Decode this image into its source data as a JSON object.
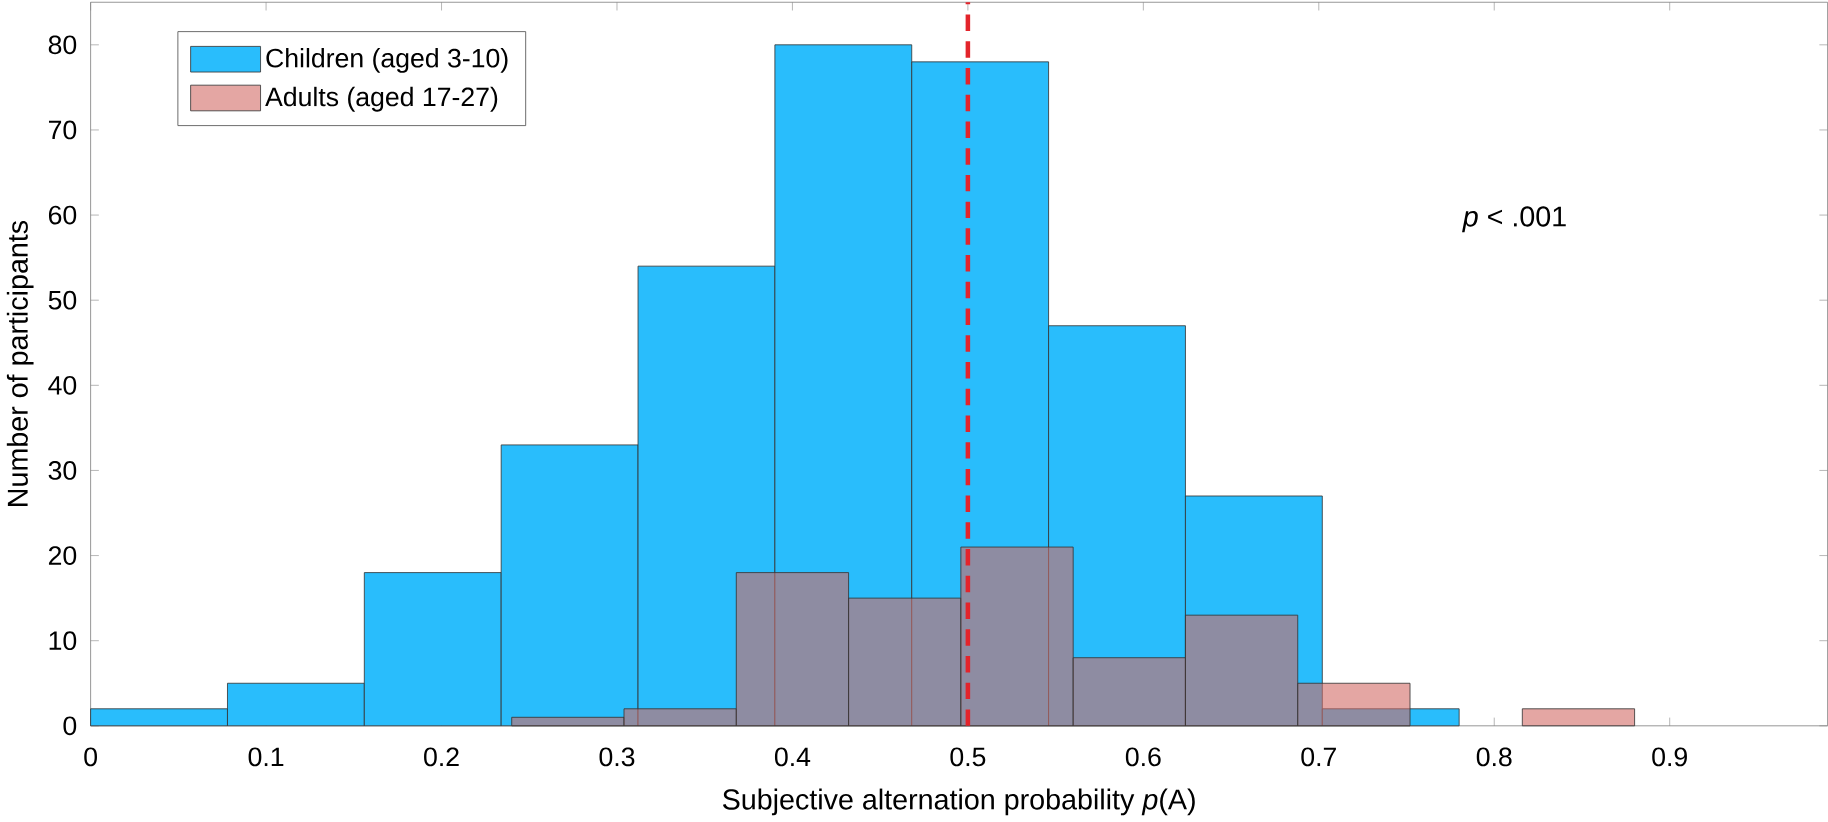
{
  "chart_data": {
    "type": "histogram",
    "xlabel": "Subjective alternation probability *p*(A)",
    "ylabel": "Number of participants",
    "bins": [
      0,
      0.078,
      0.156,
      0.234,
      0.312,
      0.39,
      0.468,
      0.546,
      0.624,
      0.702,
      0.78
    ],
    "series": [
      {
        "name": "Children (aged 3-10)",
        "color": "#29bdfc",
        "values": [
          2,
          5,
          18,
          33,
          54,
          80,
          78,
          47,
          27,
          2
        ]
      },
      {
        "name": "Adults (aged 17-27)",
        "color": "#d26b66",
        "bins": [
          0.24,
          0.304,
          0.368,
          0.432,
          0.496,
          0.56,
          0.624,
          0.688,
          0.752,
          0.816,
          0.88
        ],
        "values": [
          1,
          2,
          18,
          15,
          21,
          8,
          13,
          5,
          0,
          2
        ]
      }
    ],
    "xlim": [
      0,
      0.99
    ],
    "ylim": [
      0,
      85
    ],
    "xticks": [
      {
        "value": 0,
        "label": "0"
      },
      {
        "value": 0.1,
        "label": "0.1"
      },
      {
        "value": 0.2,
        "label": "0.2"
      },
      {
        "value": 0.3,
        "label": "0.3"
      },
      {
        "value": 0.4,
        "label": "0.4"
      },
      {
        "value": 0.5,
        "label": "0.5"
      },
      {
        "value": 0.6,
        "label": "0.6"
      },
      {
        "value": 0.7,
        "label": "0.7"
      },
      {
        "value": 0.8,
        "label": "0.8"
      },
      {
        "value": 0.9,
        "label": "0.9"
      }
    ],
    "yticks": [
      {
        "value": 0,
        "label": "0"
      },
      {
        "value": 10,
        "label": "10"
      },
      {
        "value": 20,
        "label": "20"
      },
      {
        "value": 30,
        "label": "30"
      },
      {
        "value": 40,
        "label": "40"
      },
      {
        "value": 50,
        "label": "50"
      },
      {
        "value": 60,
        "label": "60"
      },
      {
        "value": 70,
        "label": "70"
      },
      {
        "value": 80,
        "label": "80"
      }
    ],
    "ref_lines": [
      {
        "axis": "x",
        "value": 0.5,
        "color": "#e3242b",
        "line_style": "dashed"
      }
    ],
    "annotations": [
      "*p* < .001"
    ],
    "legend": "top left",
    "grid": false
  }
}
